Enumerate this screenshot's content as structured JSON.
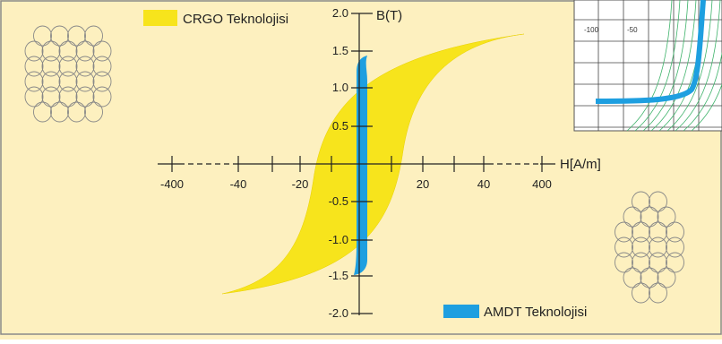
{
  "legend": {
    "crgo": "CRGO Teknolojisi",
    "amdt": "AMDT Teknolojisi"
  },
  "axes": {
    "y_label": "B(T)",
    "x_label": "H[A/m]",
    "y_ticks": [
      "2.0",
      "1.5",
      "1.0",
      "0.5",
      "-0.5",
      "-1.0",
      "-1.5",
      "-2.0"
    ],
    "x_ticks": [
      "-400",
      "-40",
      "-20",
      "20",
      "40",
      "400"
    ]
  },
  "inset": {
    "x_ticks": [
      "-100",
      "-50"
    ]
  }
}
